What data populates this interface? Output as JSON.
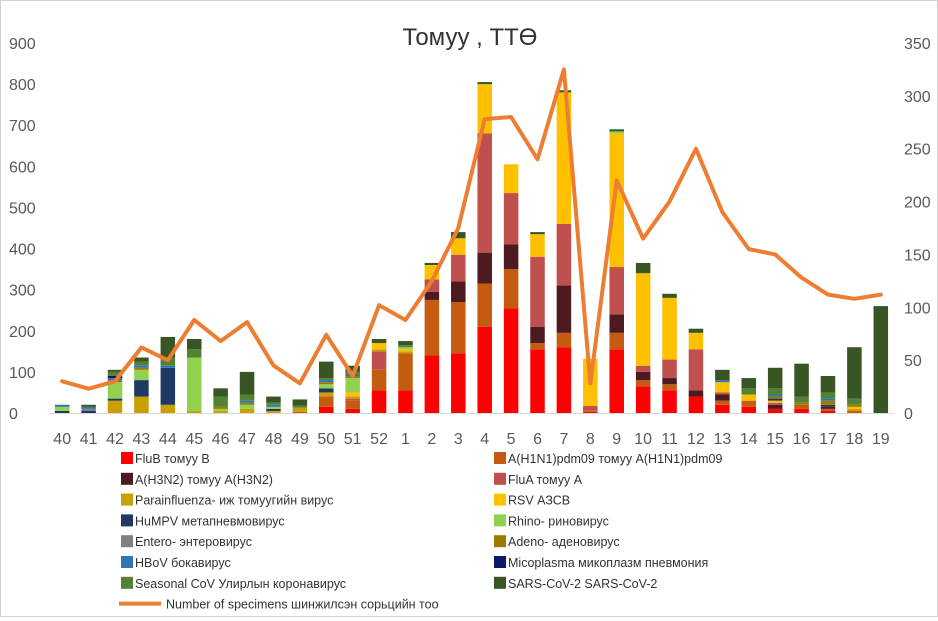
{
  "chart_data": {
    "type": "bar",
    "stacked": true,
    "title": "Томуу , ТТӨ",
    "categories": [
      "40",
      "41",
      "42",
      "43",
      "44",
      "45",
      "46",
      "47",
      "48",
      "49",
      "50",
      "51",
      "52",
      "1",
      "2",
      "3",
      "4",
      "5",
      "6",
      "7",
      "8",
      "9",
      "10",
      "11",
      "12",
      "13",
      "14",
      "15",
      "16",
      "17",
      "18",
      "19"
    ],
    "ylim": [
      0,
      900
    ],
    "y_ticks": [
      "0",
      "100",
      "200",
      "300",
      "400",
      "500",
      "600",
      "700",
      "800",
      "900"
    ],
    "y2lim": [
      0,
      350
    ],
    "y2_ticks": [
      "0",
      "50",
      "100",
      "150",
      "200",
      "250",
      "300",
      "350"
    ],
    "grid": false,
    "legend_position": "bottom",
    "series": [
      {
        "name": "FluB томуу B",
        "color": "#ff0000",
        "values": [
          0,
          0,
          0,
          0,
          0,
          0,
          0,
          0,
          0,
          0,
          15,
          10,
          55,
          55,
          140,
          145,
          210,
          255,
          155,
          160,
          3,
          155,
          65,
          55,
          40,
          20,
          15,
          10,
          10,
          5,
          0,
          0
        ]
      },
      {
        "name": "A(H1N1)pdm09 томуу A(H1N1)pdm09",
        "color": "#c55a11",
        "values": [
          0,
          0,
          0,
          0,
          0,
          0,
          0,
          0,
          0,
          3,
          25,
          20,
          50,
          90,
          135,
          125,
          105,
          95,
          15,
          35,
          4,
          40,
          15,
          15,
          0,
          10,
          15,
          0,
          10,
          5,
          5,
          0
        ]
      },
      {
        "name": "A(H3N2) томуу A(H3N2)",
        "color": "#4e1a22",
        "values": [
          0,
          0,
          0,
          0,
          0,
          0,
          0,
          0,
          0,
          0,
          0,
          0,
          0,
          0,
          20,
          50,
          75,
          60,
          40,
          115,
          0,
          45,
          20,
          15,
          15,
          15,
          0,
          10,
          0,
          5,
          0,
          0
        ]
      },
      {
        "name": "FluA томуу A",
        "color": "#c0504d",
        "values": [
          0,
          0,
          0,
          0,
          0,
          0,
          0,
          0,
          0,
          0,
          0,
          5,
          45,
          0,
          30,
          65,
          290,
          125,
          170,
          150,
          10,
          115,
          15,
          45,
          100,
          5,
          0,
          5,
          0,
          0,
          0,
          0
        ]
      },
      {
        "name": "Parainfluenza- иж томуугийн вирус",
        "color": "#c9a000",
        "values": [
          0,
          0,
          30,
          40,
          20,
          5,
          5,
          10,
          5,
          10,
          10,
          5,
          5,
          5,
          0,
          0,
          0,
          0,
          0,
          0,
          0,
          0,
          0,
          0,
          0,
          0,
          0,
          0,
          0,
          0,
          5,
          0
        ]
      },
      {
        "name": "RSV АЗСВ",
        "color": "#ffc000",
        "values": [
          0,
          0,
          0,
          0,
          0,
          0,
          0,
          0,
          0,
          0,
          0,
          10,
          15,
          5,
          35,
          40,
          120,
          70,
          55,
          320,
          115,
          325,
          225,
          150,
          40,
          25,
          15,
          5,
          0,
          0,
          5,
          0
        ]
      },
      {
        "name": "HuMPV метапневмовирус",
        "color": "#1f3864",
        "values": [
          5,
          5,
          5,
          40,
          90,
          0,
          0,
          0,
          5,
          0,
          10,
          0,
          0,
          0,
          0,
          0,
          0,
          0,
          0,
          0,
          0,
          0,
          0,
          0,
          0,
          0,
          0,
          5,
          0,
          5,
          0,
          0
        ]
      },
      {
        "name": "Rhino- риновирус",
        "color": "#92d050",
        "values": [
          10,
          0,
          40,
          25,
          0,
          130,
          5,
          10,
          5,
          0,
          10,
          35,
          0,
          5,
          0,
          0,
          0,
          0,
          0,
          0,
          0,
          5,
          0,
          0,
          0,
          0,
          0,
          0,
          0,
          0,
          0,
          0
        ]
      },
      {
        "name": "Entero- энтеровирус",
        "color": "#808080",
        "values": [
          0,
          5,
          0,
          0,
          0,
          0,
          0,
          0,
          0,
          0,
          0,
          0,
          0,
          0,
          0,
          0,
          0,
          0,
          0,
          0,
          0,
          0,
          0,
          0,
          0,
          0,
          0,
          0,
          0,
          0,
          0,
          0
        ]
      },
      {
        "name": "Adeno- аденовирус",
        "color": "#9c7a00",
        "values": [
          0,
          0,
          5,
          5,
          0,
          0,
          5,
          5,
          0,
          0,
          5,
          5,
          0,
          0,
          0,
          0,
          0,
          0,
          0,
          0,
          0,
          0,
          0,
          0,
          0,
          0,
          0,
          5,
          5,
          10,
          5,
          0
        ]
      },
      {
        "name": "HBoV бокавирус",
        "color": "#2e75b6",
        "values": [
          5,
          5,
          5,
          5,
          5,
          0,
          0,
          5,
          5,
          0,
          5,
          5,
          0,
          0,
          0,
          0,
          0,
          0,
          0,
          0,
          0,
          0,
          0,
          0,
          0,
          5,
          0,
          5,
          0,
          5,
          0,
          0
        ]
      },
      {
        "name": "Micoplasma микоплазм пневмония",
        "color": "#0d1a6b",
        "values": [
          0,
          0,
          5,
          0,
          0,
          0,
          0,
          0,
          0,
          0,
          0,
          0,
          0,
          0,
          0,
          0,
          0,
          0,
          0,
          0,
          0,
          0,
          0,
          0,
          0,
          0,
          0,
          0,
          0,
          0,
          0,
          0
        ]
      },
      {
        "name": "Seasonal CoV Улирлын коронавирус",
        "color": "#548235",
        "values": [
          0,
          0,
          10,
          10,
          20,
          20,
          25,
          15,
          5,
          5,
          5,
          5,
          0,
          5,
          0,
          0,
          0,
          0,
          0,
          0,
          0,
          0,
          0,
          0,
          0,
          0,
          15,
          15,
          15,
          15,
          15,
          0
        ]
      },
      {
        "name": "SARS-CoV-2 SARS-CoV-2",
        "color": "#375623",
        "values": [
          0,
          5,
          5,
          10,
          50,
          25,
          20,
          55,
          15,
          15,
          40,
          15,
          10,
          10,
          5,
          15,
          5,
          0,
          5,
          5,
          0,
          5,
          25,
          10,
          10,
          25,
          25,
          50,
          80,
          40,
          125,
          260
        ]
      }
    ],
    "line": {
      "name": "Number of specimens шинжилсэн сорьцийн тоо",
      "color": "#ed7d31",
      "axis": "right",
      "values": [
        30,
        23,
        30,
        62,
        50,
        88,
        68,
        86,
        45,
        28,
        74,
        35,
        102,
        88,
        125,
        175,
        278,
        280,
        240,
        325,
        28,
        220,
        165,
        200,
        250,
        190,
        155,
        150,
        128,
        112,
        108,
        112
      ]
    }
  }
}
